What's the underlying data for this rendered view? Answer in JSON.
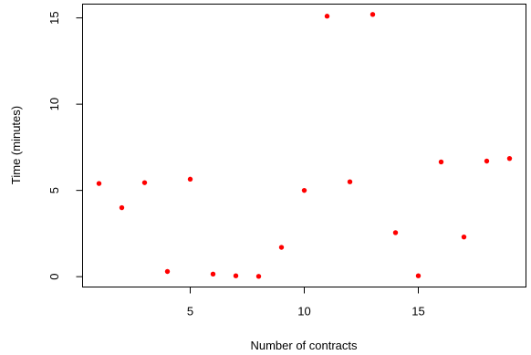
{
  "chart_data": {
    "type": "scatter",
    "title": "",
    "xlabel": "Number of contracts",
    "ylabel": "Time (minutes)",
    "xlim": [
      0.28,
      19.72
    ],
    "ylim": [
      -0.6,
      15.8
    ],
    "x_ticks": [
      5,
      10,
      15
    ],
    "y_ticks": [
      0,
      5,
      10,
      15
    ],
    "x_tick_labels": [
      "5",
      "10",
      "15"
    ],
    "y_tick_labels": [
      "0",
      "5",
      "10",
      "15"
    ],
    "grid": false,
    "marker_color": "#ff0000",
    "points": [
      {
        "x": 1,
        "y": 5.4
      },
      {
        "x": 2,
        "y": 4.0
      },
      {
        "x": 3,
        "y": 5.45
      },
      {
        "x": 4,
        "y": 0.3
      },
      {
        "x": 5,
        "y": 5.65
      },
      {
        "x": 6,
        "y": 0.15
      },
      {
        "x": 7,
        "y": 0.05
      },
      {
        "x": 8,
        "y": 0.02
      },
      {
        "x": 9,
        "y": 1.7
      },
      {
        "x": 10,
        "y": 5.0
      },
      {
        "x": 11,
        "y": 15.1
      },
      {
        "x": 12,
        "y": 5.5
      },
      {
        "x": 13,
        "y": 15.2
      },
      {
        "x": 14,
        "y": 2.55
      },
      {
        "x": 15,
        "y": 0.05
      },
      {
        "x": 16,
        "y": 6.65
      },
      {
        "x": 17,
        "y": 2.3
      },
      {
        "x": 18,
        "y": 6.7
      },
      {
        "x": 19,
        "y": 6.85
      }
    ]
  }
}
